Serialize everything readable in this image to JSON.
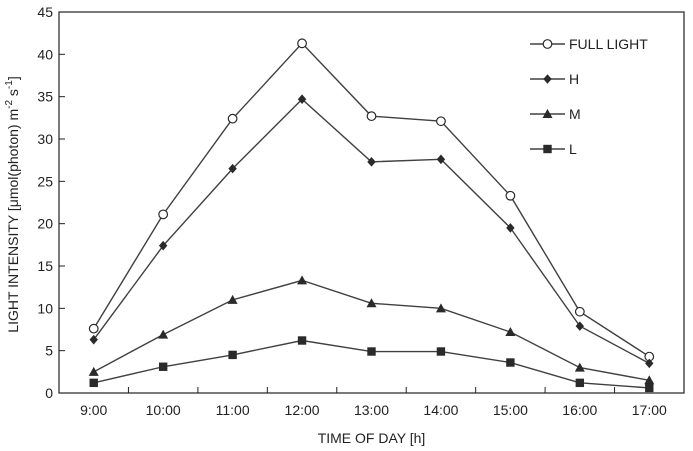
{
  "chart_data": {
    "type": "line",
    "title": "",
    "xlabel": "TIME OF DAY [h]",
    "ylabel_parts": [
      "LIGHT INTENSITY [μmol(photon) m",
      "-2",
      " s",
      "-1",
      "]"
    ],
    "categories": [
      "9:00",
      "10:00",
      "11:00",
      "12:00",
      "13:00",
      "14:00",
      "15:00",
      "16:00",
      "17:00"
    ],
    "ylim": [
      0,
      45
    ],
    "yticks": [
      0,
      5,
      10,
      15,
      20,
      25,
      30,
      35,
      40,
      45
    ],
    "grid": false,
    "legend_position": "top-right",
    "series": [
      {
        "name": "FULL LIGHT",
        "marker": "open-circle",
        "values": [
          7.6,
          21.1,
          32.4,
          41.3,
          32.7,
          32.1,
          23.3,
          9.6,
          4.3
        ]
      },
      {
        "name": "H",
        "marker": "diamond",
        "values": [
          6.3,
          17.4,
          26.5,
          34.7,
          27.3,
          27.6,
          19.5,
          7.9,
          3.5
        ]
      },
      {
        "name": "M",
        "marker": "triangle",
        "values": [
          2.5,
          6.9,
          11.0,
          13.3,
          10.6,
          10.0,
          7.2,
          3.0,
          1.5
        ]
      },
      {
        "name": "L",
        "marker": "square",
        "values": [
          1.2,
          3.1,
          4.5,
          6.2,
          4.9,
          4.9,
          3.6,
          1.2,
          0.6
        ]
      }
    ],
    "colors": {
      "line": "#404040",
      "marker": "#2a2a2a",
      "axis": "#222222",
      "text": "#222222"
    }
  }
}
